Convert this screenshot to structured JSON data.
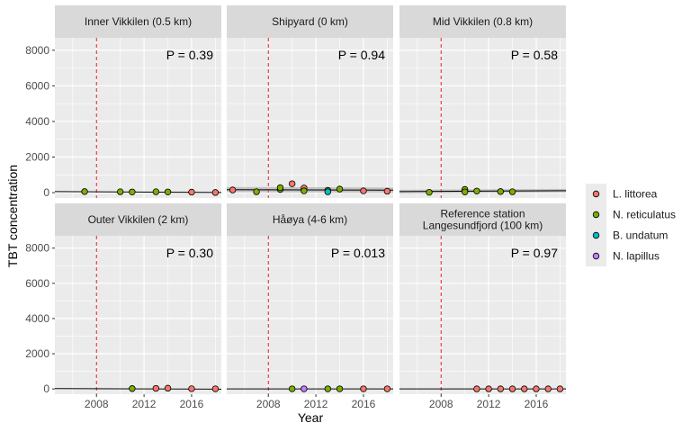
{
  "chart_data": {
    "type": "scatter",
    "xlabel": "Year",
    "ylabel": "TBT concentration",
    "xlim": [
      2004.5,
      2018.5
    ],
    "ylim": [
      -300,
      8700
    ],
    "x_ticks": [
      2008,
      2012,
      2016
    ],
    "x_tick_labels": [
      "2008",
      "2012",
      "2016"
    ],
    "y_ticks": [
      0,
      2000,
      4000,
      6000,
      8000
    ],
    "y_tick_labels": [
      "0",
      "2000",
      "4000",
      "6000",
      "8000"
    ],
    "reference_line_x": 2008,
    "grid": true,
    "legend_position": "right",
    "species": [
      {
        "name": "L. littorea",
        "color": "#F8766D"
      },
      {
        "name": "N. reticulatus",
        "color": "#7CAE00"
      },
      {
        "name": "B. undatum",
        "color": "#00BFC4"
      },
      {
        "name": "N. lapillus",
        "color": "#C77CFF"
      }
    ],
    "panels": [
      {
        "title": [
          "Inner Vikkilen (0.5 km)"
        ],
        "p_label": "P = 0.39",
        "trend": {
          "x": [
            2004.5,
            2018.5
          ],
          "y": [
            60,
            10
          ]
        },
        "points": [
          {
            "x": 2007,
            "y": 60,
            "s": 1
          },
          {
            "x": 2010,
            "y": 50,
            "s": 1
          },
          {
            "x": 2011,
            "y": 40,
            "s": 1
          },
          {
            "x": 2013,
            "y": 50,
            "s": 1
          },
          {
            "x": 2014,
            "y": 40,
            "s": 1
          },
          {
            "x": 2016,
            "y": 30,
            "s": 0
          },
          {
            "x": 2018,
            "y": 10,
            "s": 0
          }
        ]
      },
      {
        "title": [
          "Shipyard (0 km)"
        ],
        "p_label": "P = 0.94",
        "trend": {
          "x": [
            2004.5,
            2018.5
          ],
          "y": [
            170,
            140
          ],
          "band": 150
        },
        "points": [
          {
            "x": 2005,
            "y": 150,
            "s": 0
          },
          {
            "x": 2007,
            "y": 50,
            "s": 1
          },
          {
            "x": 2009,
            "y": 180,
            "s": 1
          },
          {
            "x": 2009,
            "y": 280,
            "s": 1
          },
          {
            "x": 2010,
            "y": 500,
            "s": 0
          },
          {
            "x": 2011,
            "y": 260,
            "s": 0
          },
          {
            "x": 2011,
            "y": 100,
            "s": 1
          },
          {
            "x": 2013,
            "y": 130,
            "s": 1
          },
          {
            "x": 2013,
            "y": 50,
            "s": 2
          },
          {
            "x": 2014,
            "y": 200,
            "s": 1
          },
          {
            "x": 2016,
            "y": 100,
            "s": 0
          },
          {
            "x": 2018,
            "y": 80,
            "s": 0
          }
        ]
      },
      {
        "title": [
          "Mid Vikkilen (0.8 km)"
        ],
        "p_label": "P = 0.58",
        "trend": {
          "x": [
            2004.5,
            2018.5
          ],
          "y": [
            60,
            110
          ],
          "band": 100
        },
        "points": [
          {
            "x": 2007,
            "y": 20,
            "s": 1
          },
          {
            "x": 2010,
            "y": 180,
            "s": 1
          },
          {
            "x": 2010,
            "y": 40,
            "s": 1
          },
          {
            "x": 2011,
            "y": 90,
            "s": 1
          },
          {
            "x": 2013,
            "y": 60,
            "s": 1
          },
          {
            "x": 2014,
            "y": 50,
            "s": 1
          }
        ]
      },
      {
        "title": [
          "Outer Vikkilen (2 km)"
        ],
        "p_label": "P = 0.30",
        "trend": {
          "x": [
            2004.5,
            2018.5
          ],
          "y": [
            20,
            -10
          ]
        },
        "points": [
          {
            "x": 2011,
            "y": 20,
            "s": 1
          },
          {
            "x": 2013,
            "y": 30,
            "s": 0
          },
          {
            "x": 2014,
            "y": 40,
            "s": 0
          },
          {
            "x": 2016,
            "y": 10,
            "s": 0
          },
          {
            "x": 2018,
            "y": 5,
            "s": 0
          }
        ]
      },
      {
        "title": [
          "Håøya (4-6 km)"
        ],
        "p_label": "P = 0.013",
        "trend": {
          "x": [
            2004.5,
            2018.5
          ],
          "y": [
            0,
            0
          ]
        },
        "points": [
          {
            "x": 2010,
            "y": 5,
            "s": 1
          },
          {
            "x": 2011,
            "y": 5,
            "s": 3
          },
          {
            "x": 2013,
            "y": 5,
            "s": 1
          },
          {
            "x": 2014,
            "y": 5,
            "s": 1
          },
          {
            "x": 2016,
            "y": 5,
            "s": 0
          },
          {
            "x": 2018,
            "y": 5,
            "s": 0
          }
        ]
      },
      {
        "title": [
          "Reference station",
          "Langesundfjord (100 km)"
        ],
        "p_label": "P = 0.97",
        "trend": {
          "x": [
            2004.5,
            2018.5
          ],
          "y": [
            0,
            0
          ]
        },
        "points": [
          {
            "x": 2011,
            "y": 2,
            "s": 0
          },
          {
            "x": 2012,
            "y": 2,
            "s": 0
          },
          {
            "x": 2013,
            "y": 2,
            "s": 0
          },
          {
            "x": 2014,
            "y": 2,
            "s": 0
          },
          {
            "x": 2015,
            "y": 2,
            "s": 0
          },
          {
            "x": 2016,
            "y": 2,
            "s": 0
          },
          {
            "x": 2017,
            "y": 2,
            "s": 0
          },
          {
            "x": 2018,
            "y": 2,
            "s": 0
          }
        ]
      }
    ]
  }
}
